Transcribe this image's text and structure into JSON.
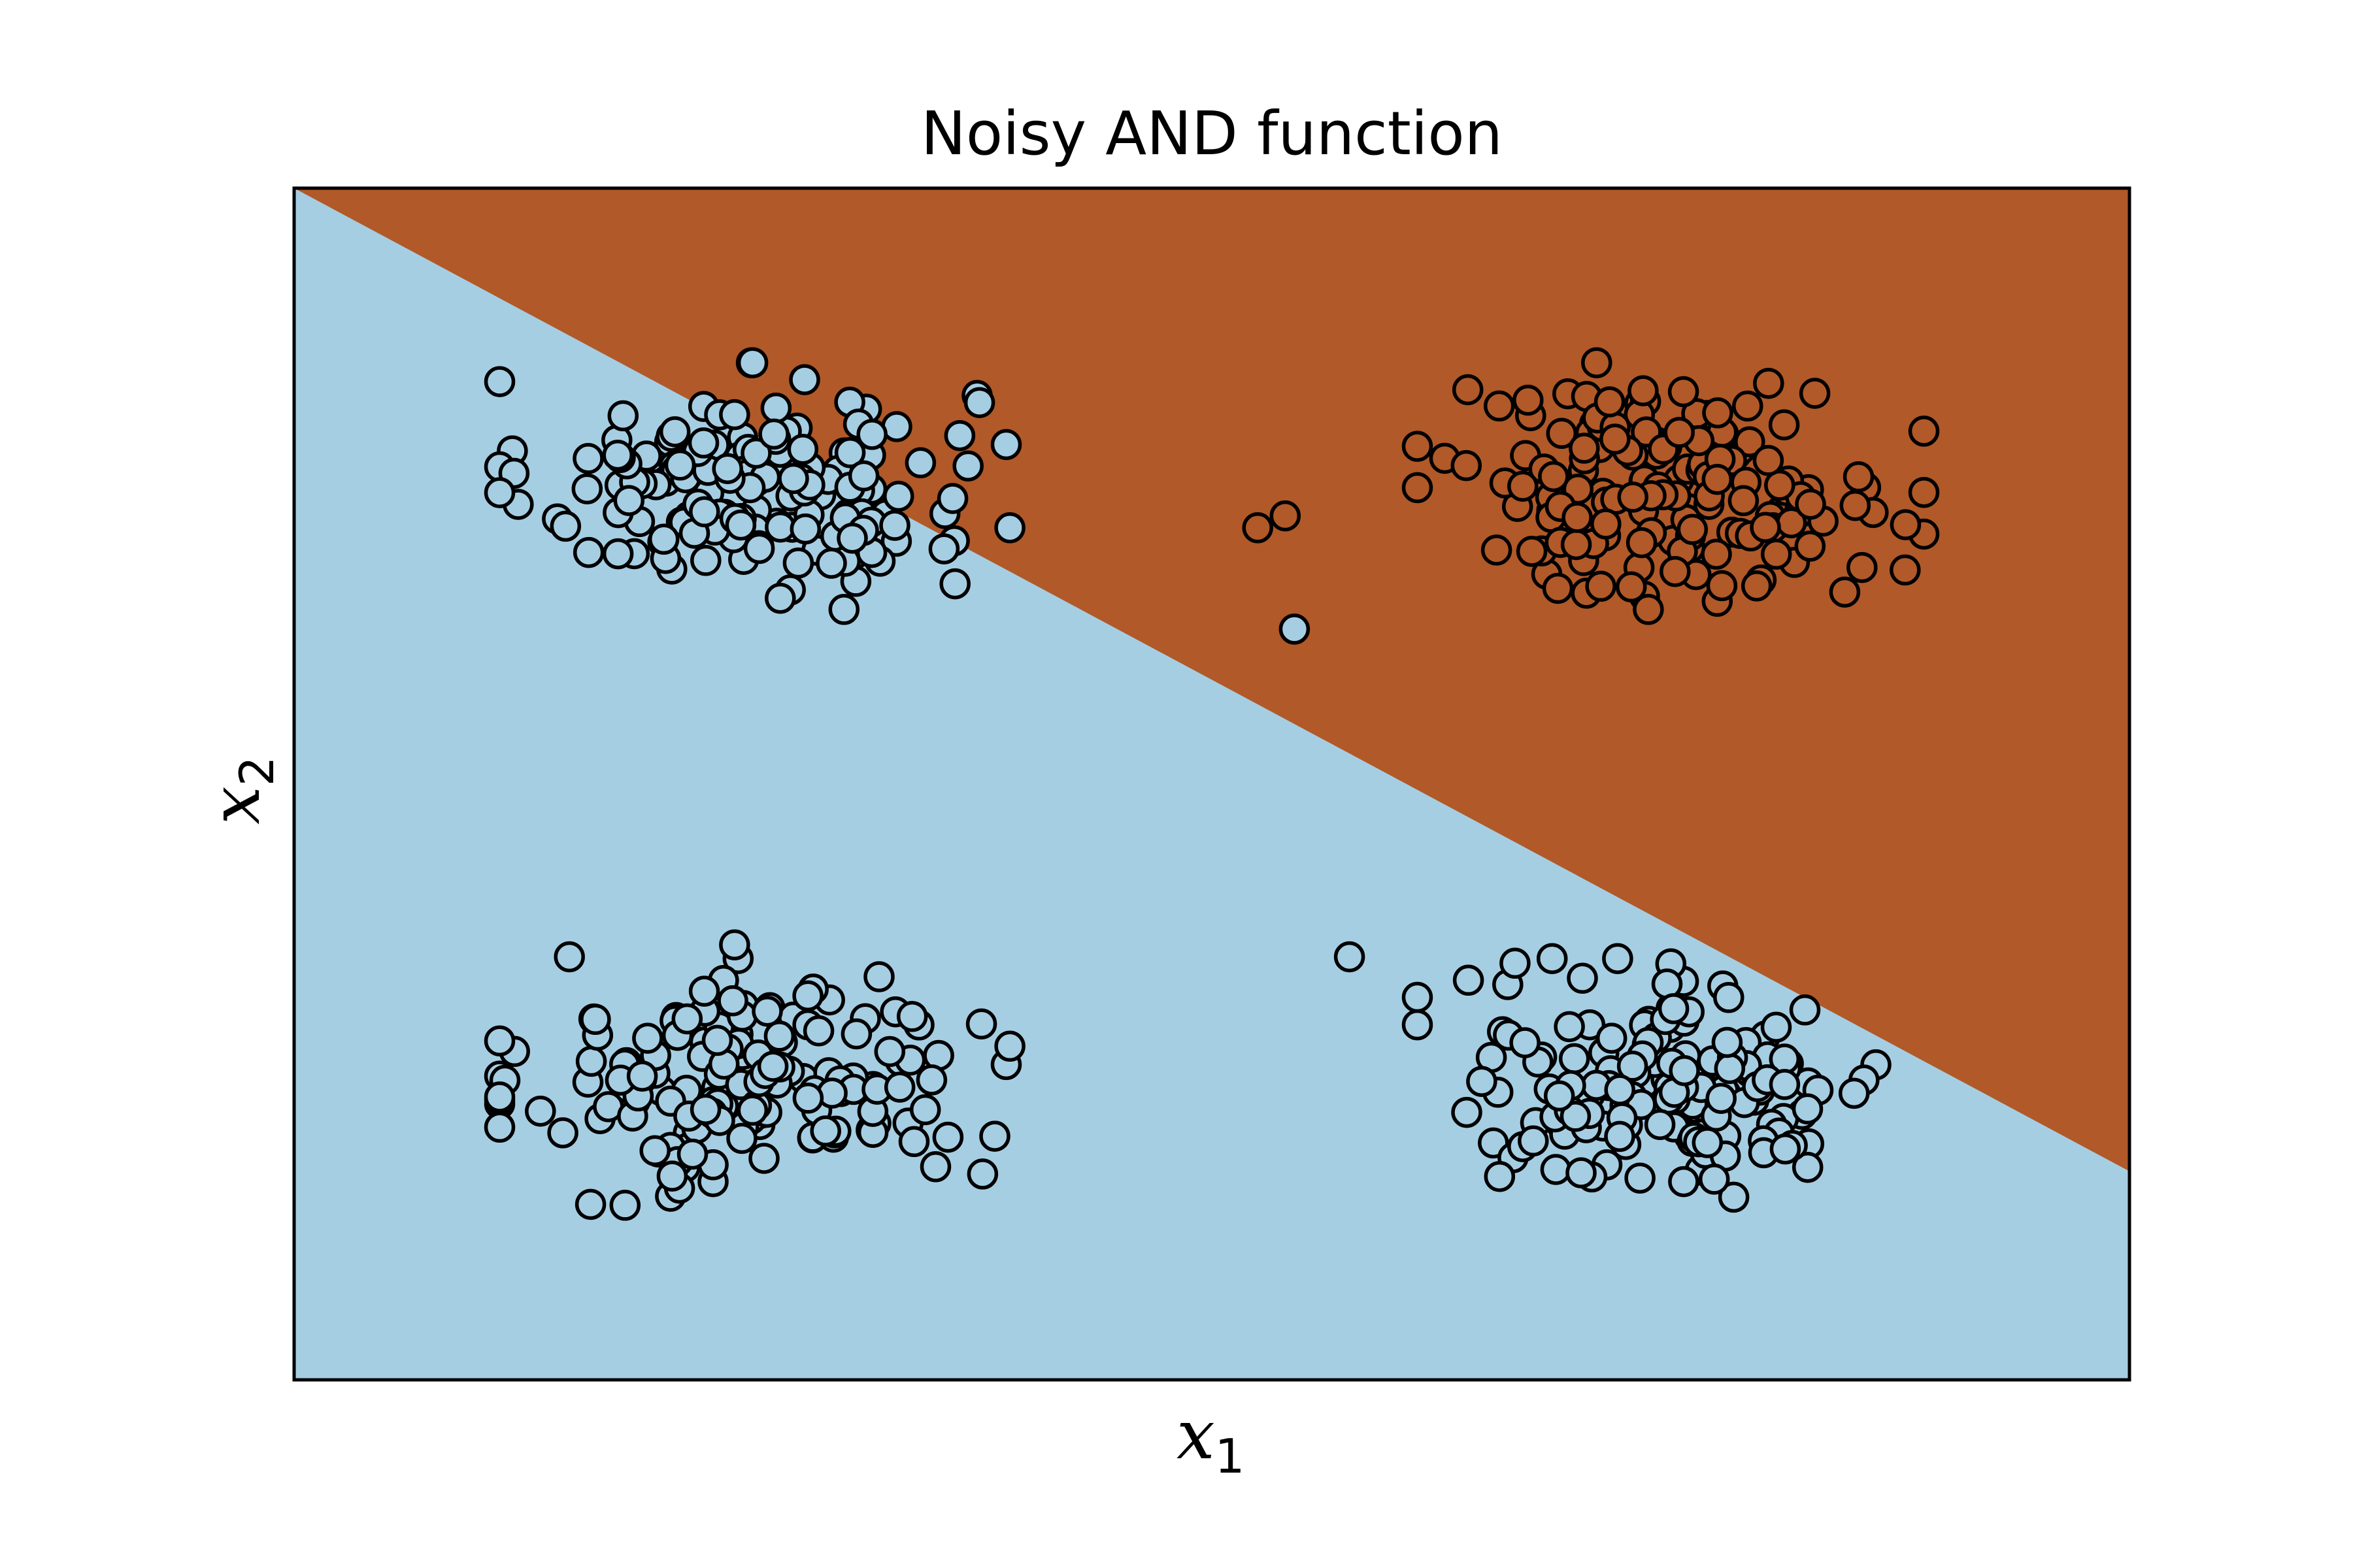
{
  "chart_data": {
    "type": "scatter",
    "title": "Noisy AND function",
    "xlabel": "x",
    "xlabel_subscript": "1",
    "ylabel": "x",
    "ylabel_subscript": "2",
    "xlim": [
      -0.5,
      1.5
    ],
    "ylim": [
      -0.5,
      1.5
    ],
    "grid": false,
    "ticks_visible": false,
    "legend": "none",
    "decision_boundary": {
      "x": [
        -0.5,
        1.5
      ],
      "y": [
        1.5,
        -0.15
      ]
    },
    "classes": [
      {
        "label": 0,
        "color": "#a6cee3"
      },
      {
        "label": 1,
        "color": "#b15928"
      }
    ],
    "clusters": [
      {
        "class": 0,
        "center": [
          0.0,
          1.0
        ],
        "spread": [
          0.12,
          0.09
        ],
        "count": 160
      },
      {
        "class": 0,
        "center": [
          0.0,
          0.0
        ],
        "spread": [
          0.12,
          0.09
        ],
        "count": 160
      },
      {
        "class": 0,
        "center": [
          1.0,
          0.0
        ],
        "spread": [
          0.12,
          0.09
        ],
        "count": 160
      },
      {
        "class": 1,
        "center": [
          1.0,
          1.0
        ],
        "spread": [
          0.12,
          0.09
        ],
        "count": 160
      }
    ],
    "outliers": [
      {
        "class": 0,
        "x": 0.28,
        "y": 0.93
      },
      {
        "class": 0,
        "x": -0.2,
        "y": 0.21
      },
      {
        "class": 0,
        "x": -0.02,
        "y": 0.23
      },
      {
        "class": 0,
        "x": 0.28,
        "y": 0.06
      },
      {
        "class": 0,
        "x": 0.65,
        "y": 0.21
      },
      {
        "class": 0,
        "x": 0.59,
        "y": 0.76
      },
      {
        "class": 0,
        "x": -0.02,
        "y": 1.12
      },
      {
        "class": 1,
        "x": 0.55,
        "y": 0.93
      },
      {
        "class": 1,
        "x": 0.58,
        "y": 0.95
      },
      {
        "class": 1,
        "x": 0.97,
        "y": 1.16
      }
    ]
  }
}
